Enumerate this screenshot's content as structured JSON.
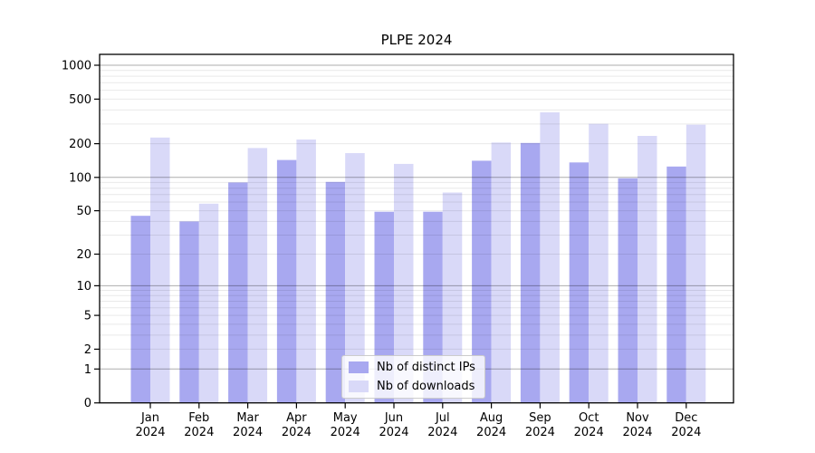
{
  "chart_data": {
    "type": "bar",
    "title": "PLPE 2024",
    "categories": [
      "Jan 2024",
      "Feb 2024",
      "Mar 2024",
      "Apr 2024",
      "May 2024",
      "Jun 2024",
      "Jul 2024",
      "Aug 2024",
      "Sep 2024",
      "Oct 2024",
      "Nov 2024",
      "Dec 2024"
    ],
    "series": [
      {
        "name": "Nb of distinct IPs",
        "color": "#a8a8f0",
        "values": [
          45,
          40,
          90,
          143,
          91,
          49,
          49,
          141,
          203,
          136,
          98,
          125
        ]
      },
      {
        "name": "Nb of downloads",
        "color": "#d9d9f8",
        "values": [
          227,
          58,
          183,
          218,
          165,
          132,
          73,
          205,
          381,
          301,
          235,
          296
        ]
      }
    ],
    "xlabel": "",
    "ylabel": "",
    "yscale": "symlog",
    "yticks": [
      0,
      1,
      2,
      5,
      10,
      20,
      50,
      100,
      200,
      500,
      1000
    ],
    "major_gridlines": [
      1,
      10,
      100,
      1000
    ],
    "ylim": [
      0,
      1250
    ],
    "grid": "on",
    "legend_position": "lower center"
  }
}
